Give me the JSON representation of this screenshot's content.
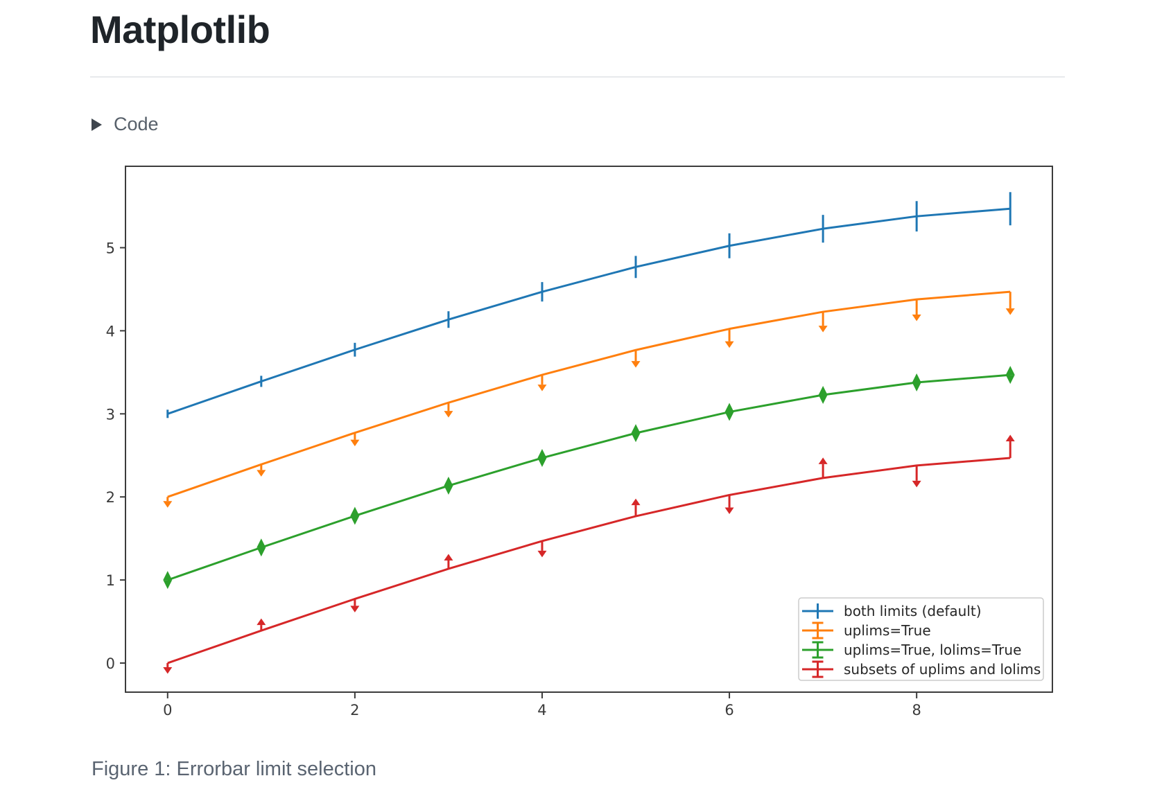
{
  "header": {
    "title": "Matplotlib"
  },
  "code_section": {
    "label": "Code",
    "expand_icon": "right-pointing-triangle",
    "state": "collapsed"
  },
  "figure": {
    "caption": "Figure 1: Errorbar limit selection"
  },
  "chart_data": {
    "type": "line",
    "title": "",
    "xlabel": "",
    "ylabel": "",
    "x": [
      0,
      1,
      2,
      3,
      4,
      5,
      6,
      7,
      8,
      9
    ],
    "xticks": [
      0,
      2,
      4,
      6,
      8
    ],
    "yticks": [
      0,
      1,
      2,
      3,
      4,
      5
    ],
    "xlim": [
      -0.45,
      9.45
    ],
    "ylim": [
      -0.35,
      5.98
    ],
    "grid": false,
    "legend_position": "lower right",
    "yerr": [
      0.05,
      0.067,
      0.083,
      0.1,
      0.117,
      0.133,
      0.15,
      0.167,
      0.183,
      0.2
    ],
    "series": [
      {
        "name": "both limits (default)",
        "color": "#1f77b4",
        "limits": "both",
        "values": [
          3.0,
          3.391,
          3.772,
          4.135,
          4.469,
          4.768,
          5.023,
          5.228,
          5.378,
          5.469
        ]
      },
      {
        "name": "uplims=True",
        "color": "#ff7f0e",
        "limits": "uplims",
        "values": [
          2.0,
          2.391,
          2.772,
          3.135,
          3.469,
          3.768,
          4.023,
          4.228,
          4.378,
          4.469
        ]
      },
      {
        "name": "uplims=True, lolims=True",
        "color": "#2ca02c",
        "limits": "uplims+lolims",
        "values": [
          1.0,
          1.391,
          1.772,
          2.135,
          2.469,
          2.768,
          3.023,
          3.228,
          3.378,
          3.469
        ]
      },
      {
        "name": "subsets of uplims and lolims",
        "color": "#d62728",
        "limits": "alternating",
        "uplims": [
          true,
          false,
          true,
          false,
          true,
          false,
          true,
          false,
          true,
          false
        ],
        "lolims": [
          false,
          true,
          false,
          true,
          false,
          true,
          false,
          true,
          false,
          true
        ],
        "values": [
          0.0,
          0.391,
          0.772,
          1.135,
          1.469,
          1.768,
          2.023,
          2.228,
          2.378,
          2.469
        ]
      }
    ],
    "style": {
      "spine_color": "#3b3b3b",
      "tick_label_color": "#3a3a3a",
      "legend_border_color": "#cccccc",
      "legend_text_color": "#262626"
    }
  }
}
